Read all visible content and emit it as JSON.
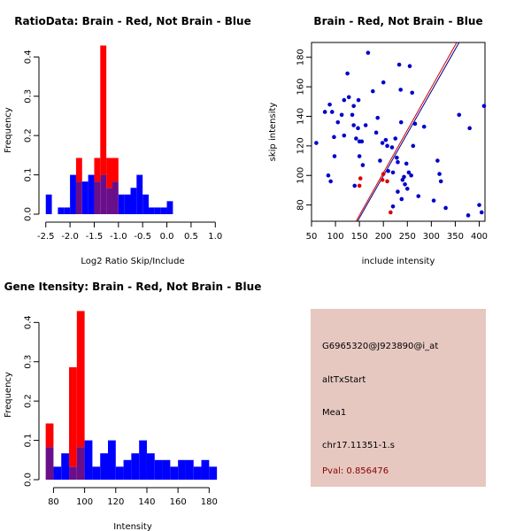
{
  "colors": {
    "red": "#ff0000",
    "blue": "#0000ff",
    "overlap": "#6a0f8a",
    "line_red": "#d00000",
    "line_blue": "#00008b",
    "point_blue": "#0000cc",
    "point_red": "#dd0000",
    "info_bg": "#e6c8c0",
    "pval": "#8b0000"
  },
  "chart_data": [
    {
      "type": "histogram",
      "title": "RatioData: Brain - Red, Not Brain - Blue",
      "xlabel": "Log2 Ratio Skip/Include",
      "ylabel": "Frequency",
      "xlim": [
        -2.55,
        1.05
      ],
      "ylim": [
        0,
        0.43
      ],
      "xticks": [
        -2.5,
        -2.0,
        -1.5,
        -1.0,
        -0.5,
        0.0,
        0.5,
        1.0
      ],
      "xtick_labels": [
        "-2.5",
        "-2.0",
        "-1.5",
        "-1.0",
        "-0.5",
        "0.0",
        "0.5",
        "1.0"
      ],
      "yticks": [
        0,
        0.1,
        0.2,
        0.3,
        0.4
      ],
      "ytick_labels": [
        "0.0",
        "0.1",
        "0.2",
        "0.3",
        "0.4"
      ],
      "bin_start": -2.5,
      "bin_width": 0.125,
      "series": [
        {
          "name": "Not Brain",
          "color": "blue",
          "values": [
            0.05,
            0,
            0.017,
            0.017,
            0.1,
            0.083,
            0.083,
            0.1,
            0.083,
            0.1,
            0.067,
            0.083,
            0.05,
            0.05,
            0.067,
            0.1,
            0.05,
            0.017,
            0.017,
            0.017,
            0.033
          ]
        },
        {
          "name": "Brain",
          "color": "red",
          "values": [
            0,
            0,
            0,
            0,
            0,
            0.143,
            0,
            0,
            0.143,
            0.429,
            0.143,
            0.143,
            0,
            0,
            0,
            0,
            0,
            0,
            0,
            0,
            0
          ]
        }
      ]
    },
    {
      "type": "scatter",
      "title": "Brain - Red, Not Brain - Blue",
      "xlabel": "include intensity",
      "ylabel": "skip intensity",
      "xlim": [
        50,
        412
      ],
      "ylim": [
        69,
        190
      ],
      "xticks": [
        50,
        100,
        150,
        200,
        250,
        300,
        350,
        400
      ],
      "xtick_labels": [
        "50",
        "100",
        "150",
        "200",
        "250",
        "300",
        "350",
        "400"
      ],
      "yticks": [
        80,
        100,
        120,
        140,
        160,
        180
      ],
      "ytick_labels": [
        "80",
        "100",
        "120",
        "140",
        "160",
        "180"
      ],
      "series": [
        {
          "name": "Not Brain",
          "color": "point_blue",
          "points": [
            [
              60,
              122
            ],
            [
              78,
              143
            ],
            [
              85,
              100
            ],
            [
              88,
              148
            ],
            [
              90,
              96
            ],
            [
              93,
              143
            ],
            [
              97,
              126
            ],
            [
              98,
              113
            ],
            [
              105,
              136
            ],
            [
              113,
              141
            ],
            [
              118,
              127
            ],
            [
              118,
              151
            ],
            [
              125,
              169
            ],
            [
              128,
              153
            ],
            [
              135,
              141
            ],
            [
              138,
              134
            ],
            [
              138,
              147
            ],
            [
              140,
              93
            ],
            [
              143,
              125
            ],
            [
              148,
              151
            ],
            [
              147,
              132
            ],
            [
              150,
              113
            ],
            [
              150,
              123
            ],
            [
              155,
              123
            ],
            [
              157,
              107
            ],
            [
              163,
              134
            ],
            [
              168,
              183
            ],
            [
              178,
              157
            ],
            [
              185,
              129
            ],
            [
              188,
              139
            ],
            [
              193,
              110
            ],
            [
              198,
              122
            ],
            [
              200,
              163
            ],
            [
              205,
              124
            ],
            [
              208,
              120
            ],
            [
              210,
              103
            ],
            [
              218,
              119
            ],
            [
              220,
              79
            ],
            [
              220,
              102
            ],
            [
              225,
              125
            ],
            [
              228,
              112
            ],
            [
              230,
              89
            ],
            [
              230,
              109
            ],
            [
              233,
              175
            ],
            [
              236,
              158
            ],
            [
              237,
              136
            ],
            [
              238,
              84
            ],
            [
              240,
              97
            ],
            [
              243,
              99
            ],
            [
              245,
              94
            ],
            [
              248,
              108
            ],
            [
              250,
              91
            ],
            [
              253,
              102
            ],
            [
              255,
              174
            ],
            [
              258,
              100
            ],
            [
              260,
              156
            ],
            [
              262,
              120
            ],
            [
              266,
              135
            ],
            [
              273,
              86
            ],
            [
              285,
              133
            ],
            [
              305,
              83
            ],
            [
              313,
              110
            ],
            [
              317,
              101
            ],
            [
              320,
              96
            ],
            [
              330,
              78
            ],
            [
              358,
              141
            ],
            [
              377,
              73
            ],
            [
              380,
              132
            ],
            [
              400,
              80
            ],
            [
              405,
              75
            ],
            [
              410,
              147
            ]
          ]
        },
        {
          "name": "Brain",
          "color": "point_red",
          "points": [
            [
              150,
              93
            ],
            [
              152,
              98
            ],
            [
              198,
              97
            ],
            [
              200,
              101
            ],
            [
              208,
              96
            ],
            [
              215,
              75
            ]
          ]
        }
      ],
      "lines": [
        {
          "color": "line_red",
          "from": [
            143,
            69
          ],
          "to": [
            353,
            190
          ]
        },
        {
          "color": "line_blue",
          "from": [
            146,
            69
          ],
          "to": [
            358,
            190
          ]
        }
      ]
    },
    {
      "type": "histogram",
      "title": "Gene Itensity: Brain - Red, Not Brain - Blue",
      "xlabel": "Intensity",
      "ylabel": "Frequency",
      "xlim": [
        73.5,
        185.5
      ],
      "ylim": [
        0,
        0.43
      ],
      "xticks": [
        80,
        100,
        120,
        140,
        160,
        180
      ],
      "xtick_labels": [
        "80",
        "100",
        "120",
        "140",
        "160",
        "180"
      ],
      "yticks": [
        0,
        0.1,
        0.2,
        0.3,
        0.4
      ],
      "ytick_labels": [
        "0.0",
        "0.1",
        "0.2",
        "0.3",
        "0.4"
      ],
      "bin_start": 75,
      "bin_width": 5,
      "series": [
        {
          "name": "Not Brain",
          "color": "blue",
          "values": [
            0.083,
            0.033,
            0.067,
            0.033,
            0.083,
            0.1,
            0.033,
            0.067,
            0.1,
            0.033,
            0.05,
            0.067,
            0.1,
            0.067,
            0.05,
            0.05,
            0.033,
            0.05,
            0.05,
            0.033,
            0.05,
            0.033
          ]
        },
        {
          "name": "Brain",
          "color": "red",
          "values": [
            0.143,
            0,
            0,
            0.286,
            0.429,
            0,
            0,
            0,
            0,
            0,
            0,
            0,
            0,
            0,
            0,
            0,
            0,
            0,
            0,
            0,
            0,
            0
          ]
        }
      ]
    }
  ],
  "info": {
    "probe_id": "G6965320@J923890@i_at",
    "event_type": "altTxStart",
    "gene": "Mea1",
    "location": "chr17.11351-1.s",
    "pval": "Pval: 0.856476"
  }
}
